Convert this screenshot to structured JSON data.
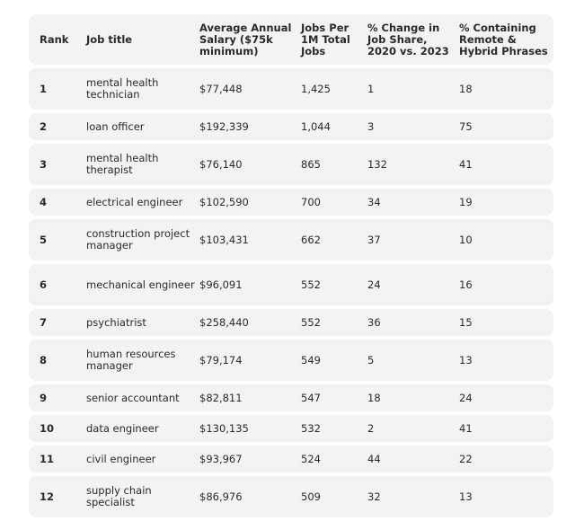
{
  "table": {
    "headers": {
      "rank": "Rank",
      "job_title": "Job title",
      "salary": "Average Annual Salary ($75k minimum)",
      "jobs_per_1m": "Jobs Per 1M Total Jobs",
      "change": "% Change in Job Share, 2020 vs. 2023",
      "remote": "% Containing Remote & Hybrid Phrases"
    },
    "rows": [
      {
        "rank": "1",
        "title": "mental health technician",
        "salary": "$77,448",
        "jobs": "1,425",
        "change": "1",
        "remote": "18"
      },
      {
        "rank": "2",
        "title": "loan officer",
        "salary": "$192,339",
        "jobs": "1,044",
        "change": "3",
        "remote": "75"
      },
      {
        "rank": "3",
        "title": "mental health therapist",
        "salary": "$76,140",
        "jobs": "865",
        "change": "132",
        "remote": "41"
      },
      {
        "rank": "4",
        "title": "electrical engineer",
        "salary": "$102,590",
        "jobs": "700",
        "change": "34",
        "remote": "19"
      },
      {
        "rank": "5",
        "title": "construction project manager",
        "salary": "$103,431",
        "jobs": "662",
        "change": "37",
        "remote": "10"
      },
      {
        "rank": "6",
        "title": "mechanical engineer",
        "salary": "$96,091",
        "jobs": "552",
        "change": "24",
        "remote": "16"
      },
      {
        "rank": "7",
        "title": "psychiatrist",
        "salary": "$258,440",
        "jobs": "552",
        "change": "36",
        "remote": "15"
      },
      {
        "rank": "8",
        "title": "human resources manager",
        "salary": "$79,174",
        "jobs": "549",
        "change": "5",
        "remote": "13"
      },
      {
        "rank": "9",
        "title": "senior accountant",
        "salary": "$82,811",
        "jobs": "547",
        "change": "18",
        "remote": "24"
      },
      {
        "rank": "10",
        "title": "data engineer",
        "salary": "$130,135",
        "jobs": "532",
        "change": "2",
        "remote": "41"
      },
      {
        "rank": "11",
        "title": "civil engineer",
        "salary": "$93,967",
        "jobs": "524",
        "change": "44",
        "remote": "22"
      },
      {
        "rank": "12",
        "title": "supply chain specialist",
        "salary": "$86,976",
        "jobs": "509",
        "change": "32",
        "remote": "13"
      }
    ]
  }
}
